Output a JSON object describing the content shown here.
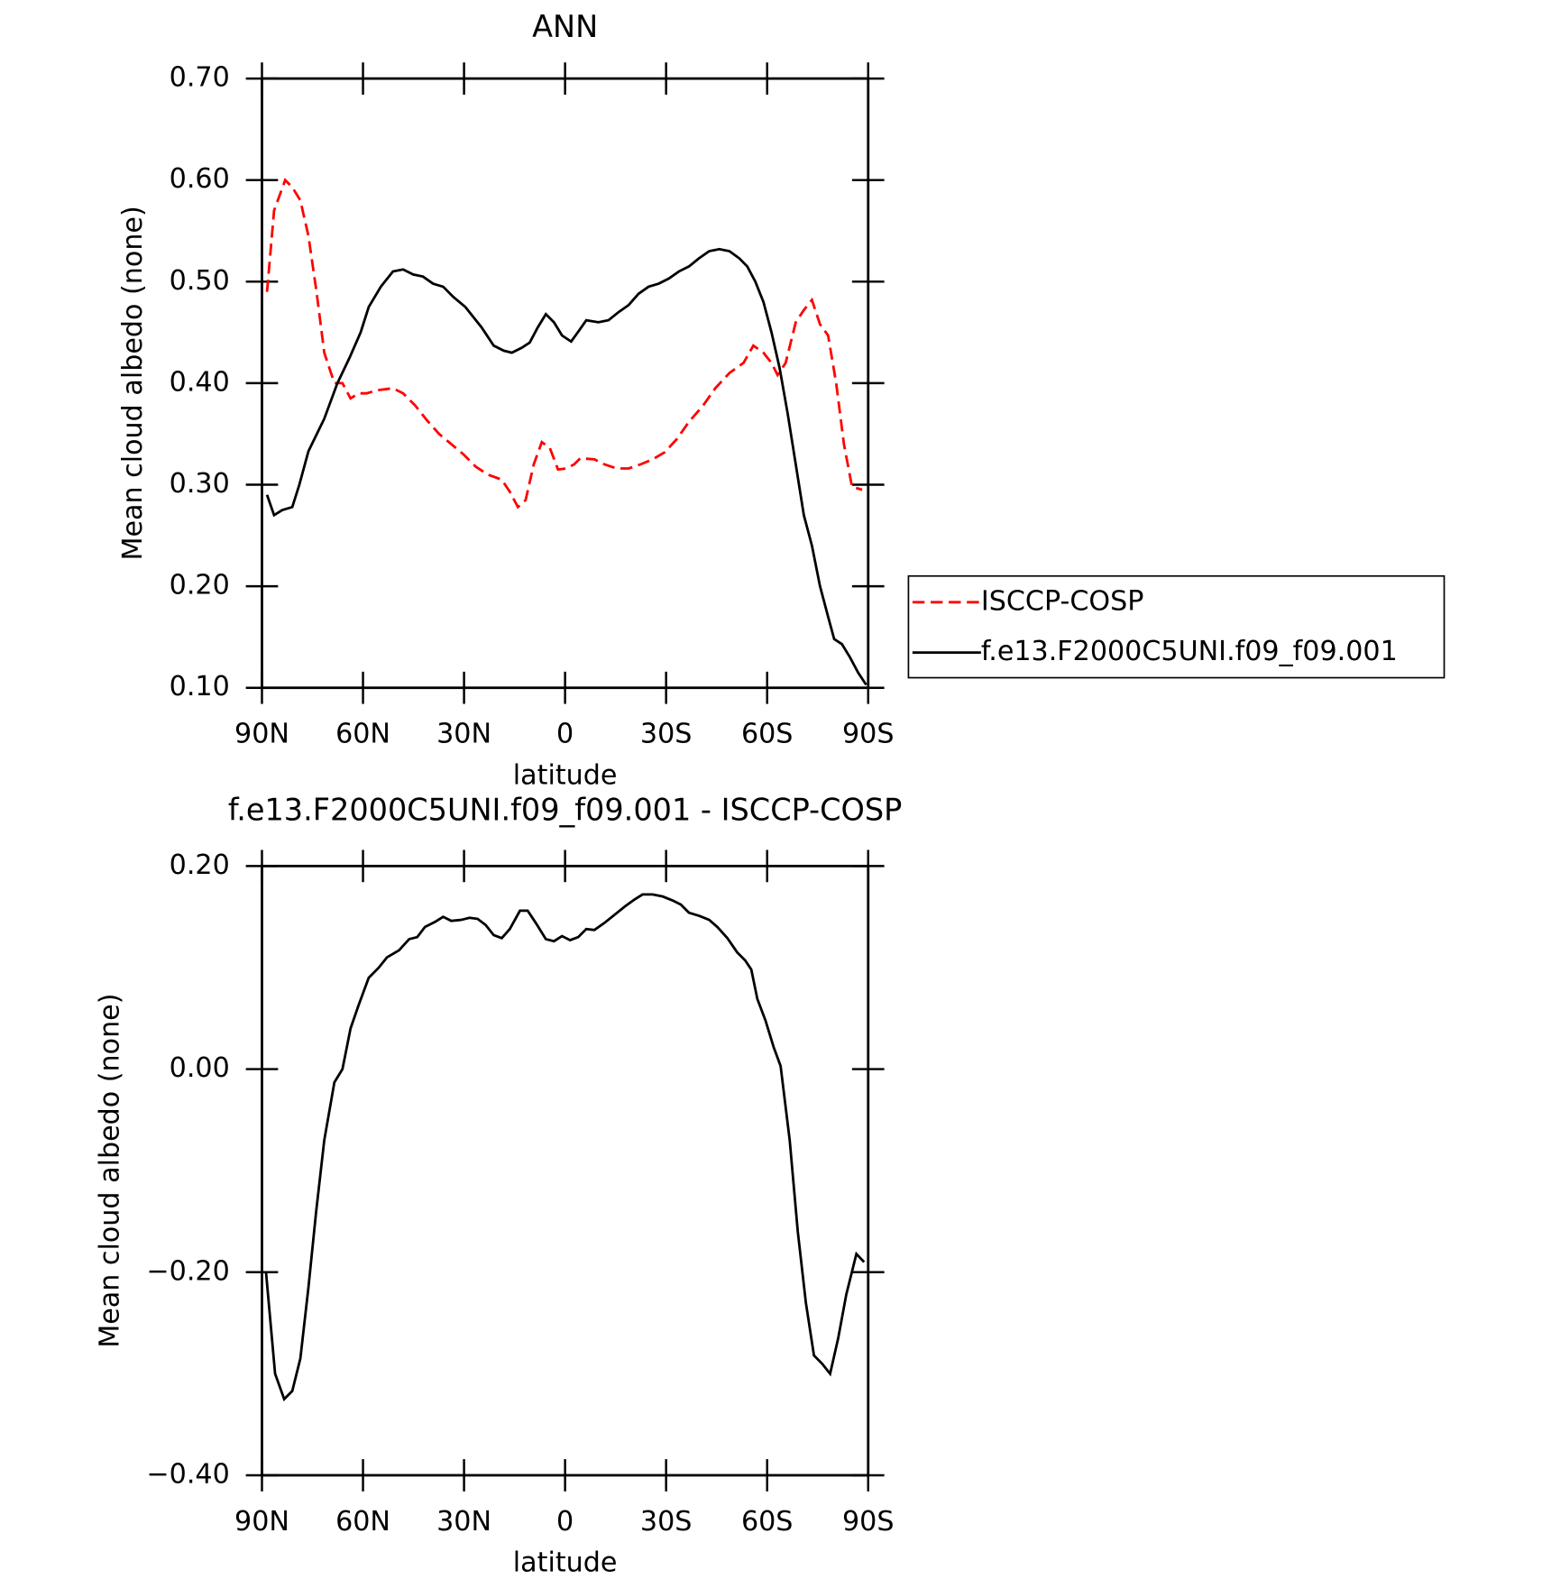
{
  "chart_data": [
    {
      "type": "line",
      "title": "ANN",
      "xlabel": "latitude",
      "ylabel": "Mean cloud albedo (none)",
      "xlim": [
        90,
        -90
      ],
      "ylim": [
        0.1,
        0.7
      ],
      "xticks": [
        {
          "value": 90,
          "label": "90N"
        },
        {
          "value": 60,
          "label": "60N"
        },
        {
          "value": 30,
          "label": "30N"
        },
        0,
        {
          "value": -30,
          "label": "30S"
        },
        {
          "value": -60,
          "label": "60S"
        },
        {
          "value": -90,
          "label": "90S"
        }
      ],
      "yticks": [
        {
          "value": 0.1,
          "label": "0.10"
        },
        {
          "value": 0.2,
          "label": "0.20"
        },
        {
          "value": 0.3,
          "label": "0.30"
        },
        {
          "value": 0.4,
          "label": "0.40"
        },
        {
          "value": 0.5,
          "label": "0.50"
        },
        {
          "value": 0.6,
          "label": "0.60"
        },
        {
          "value": 0.7,
          "label": "0.70"
        }
      ],
      "legend": "right",
      "series": [
        {
          "name": "ISCCP-COSP",
          "color": "#ff0000",
          "dash": true,
          "x": [
            88.5,
            86.4,
            83.1,
            81.0,
            78.6,
            76.2,
            73.8,
            71.5,
            68.5,
            66.1,
            63.7,
            61.3,
            58.9,
            55.9,
            51.1,
            48.1,
            44.5,
            40.9,
            37.4,
            33.8,
            30.2,
            26.6,
            23.0,
            18.8,
            16.4,
            14.0,
            11.7,
            9.3,
            6.9,
            4.5,
            2.1,
            -0.3,
            -2.7,
            -4.5,
            -8.7,
            -11.7,
            -15.3,
            -18.9,
            -22.4,
            -26.0,
            -29.6,
            -33.2,
            -36.8,
            -41.0,
            -44.6,
            -48.8,
            -53.0,
            -55.9,
            -58.9,
            -61.3,
            -63.1,
            -65.5,
            -68.5,
            -70.9,
            -73.3,
            -75.7,
            -78.1,
            -80.5,
            -82.8,
            -85.2,
            -88.2
          ],
          "values": [
            0.49,
            0.57,
            0.6,
            0.593,
            0.58,
            0.545,
            0.49,
            0.43,
            0.4,
            0.4,
            0.385,
            0.39,
            0.39,
            0.393,
            0.395,
            0.39,
            0.378,
            0.363,
            0.35,
            0.34,
            0.33,
            0.318,
            0.31,
            0.305,
            0.293,
            0.278,
            0.285,
            0.32,
            0.342,
            0.336,
            0.315,
            0.316,
            0.32,
            0.326,
            0.325,
            0.32,
            0.316,
            0.316,
            0.32,
            0.325,
            0.332,
            0.345,
            0.362,
            0.378,
            0.395,
            0.41,
            0.42,
            0.437,
            0.43,
            0.42,
            0.408,
            0.42,
            0.46,
            0.472,
            0.482,
            0.458,
            0.447,
            0.4,
            0.34,
            0.298,
            0.295
          ]
        },
        {
          "name": "f.e13.F2000C5UNI.f09_f09.001",
          "color": "#000000",
          "dash": false,
          "x": [
            88.5,
            86.4,
            84.0,
            81.0,
            78.9,
            76.2,
            71.5,
            67.6,
            64.0,
            60.7,
            58.3,
            54.7,
            51.1,
            48.1,
            45.1,
            42.2,
            39.2,
            36.2,
            33.2,
            29.6,
            24.8,
            21.2,
            18.2,
            15.8,
            12.8,
            10.5,
            8.1,
            5.7,
            3.3,
            0.9,
            -1.8,
            -4.2,
            -6.3,
            -9.9,
            -12.9,
            -15.9,
            -18.9,
            -21.8,
            -24.8,
            -27.8,
            -30.8,
            -33.8,
            -36.8,
            -39.8,
            -42.8,
            -45.8,
            -48.8,
            -51.7,
            -54.1,
            -56.5,
            -58.9,
            -61.3,
            -63.7,
            -66.1,
            -68.5,
            -70.9,
            -73.3,
            -75.7,
            -78.1,
            -79.9,
            -82.2,
            -84.6,
            -87.0,
            -89.4
          ],
          "values": [
            0.29,
            0.27,
            0.275,
            0.278,
            0.3,
            0.333,
            0.365,
            0.4,
            0.425,
            0.45,
            0.475,
            0.495,
            0.51,
            0.512,
            0.507,
            0.505,
            0.498,
            0.495,
            0.485,
            0.475,
            0.455,
            0.437,
            0.432,
            0.43,
            0.435,
            0.44,
            0.455,
            0.468,
            0.46,
            0.447,
            0.441,
            0.452,
            0.462,
            0.46,
            0.462,
            0.47,
            0.477,
            0.488,
            0.495,
            0.498,
            0.503,
            0.51,
            0.515,
            0.523,
            0.53,
            0.532,
            0.53,
            0.523,
            0.515,
            0.5,
            0.48,
            0.45,
            0.415,
            0.37,
            0.32,
            0.27,
            0.24,
            0.2,
            0.17,
            0.148,
            0.143,
            0.13,
            0.115,
            0.103
          ]
        }
      ]
    },
    {
      "type": "line",
      "title": "f.e13.F2000C5UNI.f09_f09.001 - ISCCP-COSP",
      "xlabel": "latitude",
      "ylabel": "Mean cloud albedo (none)",
      "xlim": [
        90,
        -90
      ],
      "ylim": [
        -0.4,
        0.2
      ],
      "xticks": [
        {
          "value": 90,
          "label": "90N"
        },
        {
          "value": 60,
          "label": "60N"
        },
        {
          "value": 30,
          "label": "30N"
        },
        0,
        {
          "value": -30,
          "label": "30S"
        },
        {
          "value": -60,
          "label": "60S"
        },
        {
          "value": -90,
          "label": "90S"
        }
      ],
      "yticks": [
        {
          "value": -0.4,
          "label": "−0.40"
        },
        {
          "value": -0.2,
          "label": "−0.20"
        },
        {
          "value": 0,
          "label": "0.00"
        },
        {
          "value": 0.2,
          "label": "0.20"
        }
      ],
      "series": [
        {
          "color": "#000000",
          "dash": false,
          "x": [
            88.8,
            86.1,
            83.4,
            81.0,
            78.6,
            76.2,
            73.9,
            71.5,
            68.5,
            66.1,
            63.7,
            61.3,
            58.3,
            55.3,
            52.9,
            49.3,
            46.3,
            43.9,
            41.6,
            38.6,
            36.2,
            33.8,
            30.8,
            28.4,
            26.0,
            23.6,
            21.2,
            18.8,
            16.4,
            13.4,
            11.1,
            8.7,
            5.7,
            3.3,
            0.9,
            -1.5,
            -3.9,
            -6.3,
            -8.7,
            -11.7,
            -14.7,
            -17.7,
            -20.6,
            -23.0,
            -26.0,
            -29.0,
            -32.0,
            -34.4,
            -36.8,
            -39.8,
            -42.8,
            -45.2,
            -48.2,
            -51.1,
            -53.5,
            -55.3,
            -57.1,
            -59.5,
            -61.9,
            -64.0,
            -66.7,
            -69.1,
            -71.5,
            -73.9,
            -76.3,
            -78.7,
            -81.1,
            -83.5,
            -86.5,
            -88.8
          ],
          "values": [
            -0.2,
            -0.3,
            -0.325,
            -0.317,
            -0.285,
            -0.215,
            -0.14,
            -0.07,
            -0.013,
            0.0,
            0.04,
            0.063,
            0.09,
            0.1,
            0.11,
            0.117,
            0.128,
            0.13,
            0.14,
            0.145,
            0.15,
            0.146,
            0.147,
            0.149,
            0.148,
            0.142,
            0.132,
            0.129,
            0.138,
            0.156,
            0.156,
            0.144,
            0.128,
            0.126,
            0.131,
            0.127,
            0.13,
            0.138,
            0.137,
            0.144,
            0.152,
            0.16,
            0.167,
            0.172,
            0.172,
            0.17,
            0.166,
            0.162,
            0.154,
            0.151,
            0.147,
            0.14,
            0.129,
            0.115,
            0.107,
            0.098,
            0.069,
            0.048,
            0.022,
            0.003,
            -0.07,
            -0.16,
            -0.23,
            -0.282,
            -0.29,
            -0.3,
            -0.265,
            -0.222,
            -0.182,
            -0.19
          ]
        }
      ]
    }
  ]
}
